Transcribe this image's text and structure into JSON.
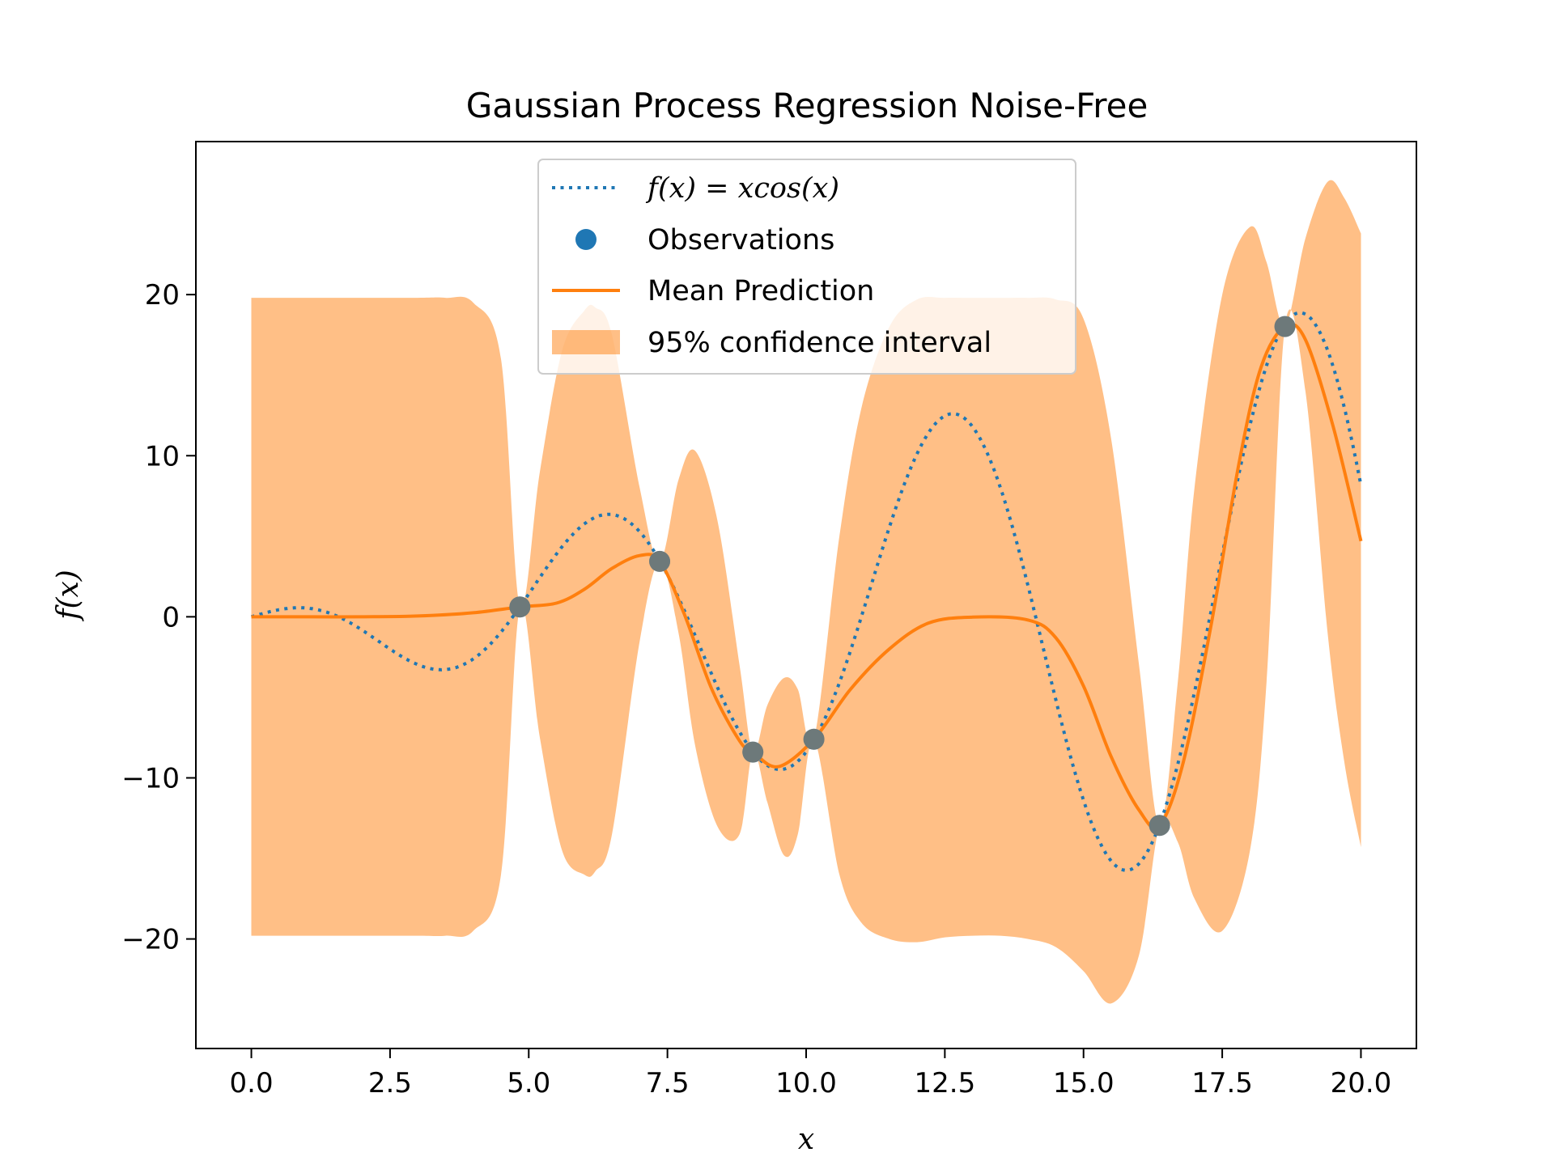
{
  "chart_data": {
    "type": "line",
    "title": "Gaussian Process Regression Noise-Free",
    "xlabel": "x",
    "ylabel": "f(x)",
    "xlim": [
      -1.0,
      21.0
    ],
    "ylim": [
      -26.8,
      29.5
    ],
    "xticks": [
      0.0,
      2.5,
      5.0,
      7.5,
      10.0,
      12.5,
      15.0,
      17.5,
      20.0
    ],
    "xtick_labels": [
      "0.0",
      "2.5",
      "5.0",
      "7.5",
      "10.0",
      "12.5",
      "15.0",
      "17.5",
      "20.0"
    ],
    "yticks": [
      -20,
      -10,
      0,
      10,
      20
    ],
    "ytick_labels": [
      "−20",
      "−10",
      "0",
      "10",
      "20"
    ],
    "grid": false,
    "legend_position": "top-center",
    "series": [
      {
        "name": "f(x) = xcos(x)",
        "kind": "line",
        "style": "dotted",
        "color": "#1f77b4",
        "function": "x*cos(x)",
        "x_range": [
          0,
          20
        ]
      },
      {
        "name": "Observations",
        "kind": "scatter",
        "color": "#1f77b4",
        "points": [
          {
            "x": 4.84,
            "y": 0.61
          },
          {
            "x": 7.36,
            "y": 3.44
          },
          {
            "x": 9.04,
            "y": -8.4
          },
          {
            "x": 10.14,
            "y": -7.6
          },
          {
            "x": 16.37,
            "y": -12.95
          },
          {
            "x": 18.63,
            "y": 18.02
          }
        ]
      },
      {
        "name": "Mean Prediction",
        "kind": "line",
        "style": "solid",
        "color": "#ff7f0e",
        "x": [
          0,
          1,
          2,
          3,
          4,
          4.84,
          5.5,
          6,
          6.5,
          7,
          7.36,
          7.8,
          8.3,
          8.8,
          9.04,
          9.5,
          10.14,
          10.8,
          11.5,
          12.2,
          13,
          14,
          14.5,
          15,
          15.5,
          16,
          16.37,
          16.8,
          17.3,
          17.8,
          18.2,
          18.63,
          19,
          19.5,
          20
        ],
        "values": [
          0,
          0,
          0,
          0.05,
          0.25,
          0.61,
          0.85,
          1.7,
          3.0,
          3.8,
          3.44,
          0.2,
          -4.5,
          -7.7,
          -8.4,
          -9.3,
          -7.6,
          -4.5,
          -2.0,
          -0.4,
          -0.02,
          -0.2,
          -1.3,
          -4.3,
          -8.7,
          -12.0,
          -12.95,
          -9.0,
          -0.5,
          9.5,
          15.5,
          18.02,
          17.2,
          11.8,
          4.7
        ]
      },
      {
        "name": "95% confidence interval",
        "kind": "band",
        "color": "#ff7f0e",
        "opacity": 0.5,
        "x": [
          0,
          1.0,
          2.0,
          3.0,
          3.5,
          4.0,
          4.5,
          4.84,
          5.2,
          5.6,
          6.0,
          6.2,
          6.5,
          7.0,
          7.36,
          7.7,
          8.0,
          8.4,
          8.8,
          9.04,
          9.3,
          9.6,
          9.85,
          10.14,
          10.6,
          11.0,
          11.5,
          12.0,
          12.5,
          13.0,
          13.5,
          14.0,
          14.5,
          15.0,
          15.5,
          16.0,
          16.37,
          16.7,
          17.0,
          17.5,
          18.0,
          18.3,
          18.63,
          19.0,
          19.4,
          19.7,
          20.0
        ],
        "upper": [
          19.8,
          19.8,
          19.8,
          19.8,
          19.8,
          19.5,
          16.0,
          0.6,
          9.0,
          16.5,
          19.0,
          19.2,
          17.5,
          8.0,
          3.4,
          8.5,
          10.3,
          6.0,
          -3.0,
          -8.4,
          -5.5,
          -3.8,
          -4.5,
          -7.6,
          5.0,
          13.0,
          18.0,
          19.7,
          19.8,
          19.8,
          19.8,
          19.8,
          19.7,
          18.5,
          11.0,
          -3.0,
          -12.95,
          -4.0,
          8.0,
          20.0,
          24.2,
          22.0,
          18.0,
          23.5,
          27.0,
          26.0,
          23.8
        ],
        "lower": [
          -19.8,
          -19.8,
          -19.8,
          -19.8,
          -19.8,
          -19.5,
          -16.0,
          0.6,
          -7.5,
          -14.5,
          -16.0,
          -15.8,
          -13.5,
          -1.5,
          3.4,
          -1.0,
          -8.0,
          -13.0,
          -13.5,
          -8.4,
          -11.5,
          -14.8,
          -13.5,
          -7.6,
          -16.0,
          -19.0,
          -20.0,
          -20.2,
          -19.9,
          -19.8,
          -19.8,
          -20.0,
          -20.5,
          -22.0,
          -24.0,
          -21.0,
          -12.95,
          -14.0,
          -17.5,
          -19.5,
          -14.5,
          -4.0,
          18.0,
          14.0,
          -1.0,
          -9.0,
          -14.3
        ]
      }
    ],
    "legend": [
      {
        "label": "f(x) = xcos(x)",
        "kind": "line",
        "style": "dotted",
        "color": "#1f77b4"
      },
      {
        "label": "Observations",
        "kind": "scatter",
        "color": "#1f77b4"
      },
      {
        "label": "Mean Prediction",
        "kind": "line",
        "style": "solid",
        "color": "#ff7f0e"
      },
      {
        "label": "95% confidence interval",
        "kind": "band",
        "color": "#ff7f0e"
      }
    ]
  }
}
